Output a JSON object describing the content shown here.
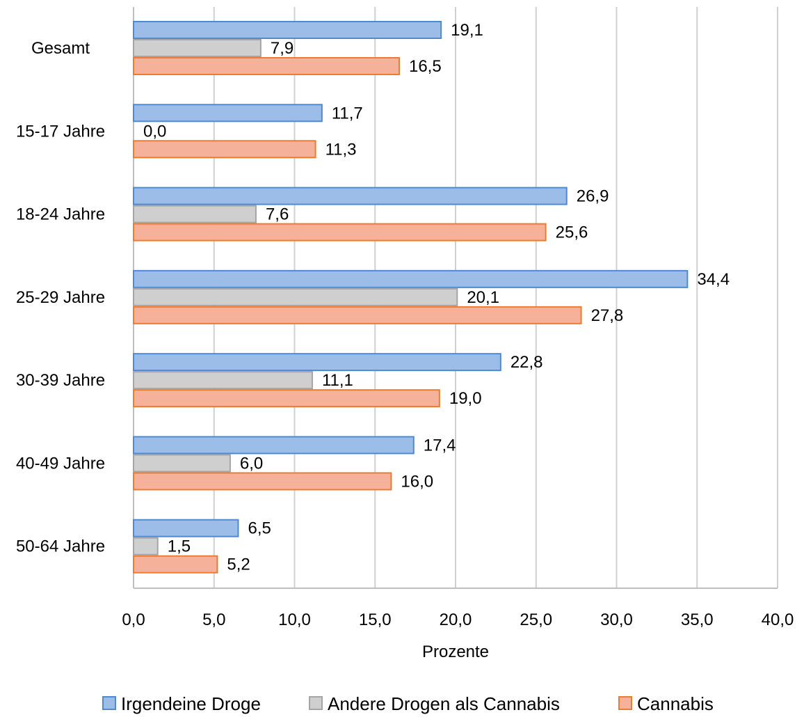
{
  "chart_data": {
    "type": "bar",
    "orientation": "horizontal",
    "categories": [
      "Gesamt",
      "15-17 Jahre",
      "18-24 Jahre",
      "25-29 Jahre",
      "30-39 Jahre",
      "40-49 Jahre",
      "50-64 Jahre"
    ],
    "series": [
      {
        "name": "Irgendeine Droge",
        "values": [
          19.1,
          11.7,
          26.9,
          34.4,
          22.8,
          17.4,
          6.5
        ],
        "labels": [
          "19,1",
          "11,7",
          "26,9",
          "34,4",
          "22,8",
          "17,4",
          "6,5"
        ],
        "fill": "#9dbde9",
        "stroke": "#4f8ad0"
      },
      {
        "name": "Andere Drogen als Cannabis",
        "values": [
          7.9,
          0.0,
          7.6,
          20.1,
          11.1,
          6.0,
          1.5
        ],
        "labels": [
          "7,9",
          "0,0",
          "7,6",
          "20,1",
          "11,1",
          "6,0",
          "1,5"
        ],
        "fill": "#cfcfcf",
        "stroke": "#a5a5a5"
      },
      {
        "name": "Cannabis",
        "values": [
          16.5,
          11.3,
          25.6,
          27.8,
          19.0,
          16.0,
          5.2
        ],
        "labels": [
          "16,5",
          "11,3",
          "25,6",
          "27,8",
          "19,0",
          "16,0",
          "5,2"
        ],
        "fill": "#f6b19a",
        "stroke": "#ec7c30"
      }
    ],
    "xlim": [
      0,
      40
    ],
    "xticks": [
      0,
      5,
      10,
      15,
      20,
      25,
      30,
      35,
      40
    ],
    "xtick_labels": [
      "0,0",
      "5,0",
      "10,0",
      "15,0",
      "20,0",
      "25,0",
      "30,0",
      "35,0",
      "40,0"
    ],
    "xlabel": "Prozente",
    "ylabel": "",
    "grid": "vertical",
    "legend_position": "bottom"
  }
}
